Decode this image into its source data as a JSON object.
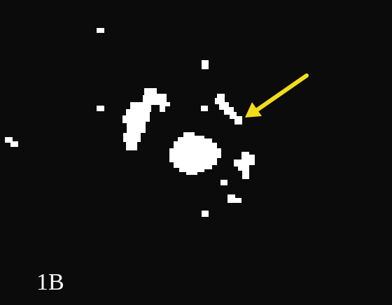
{
  "figure": {
    "panel_label": "1B",
    "background_color": "#0b0b0b",
    "blob_color": "#ffffff",
    "arrow_color": "#f2dc1a",
    "arrow_icon": "arrow-icon"
  }
}
